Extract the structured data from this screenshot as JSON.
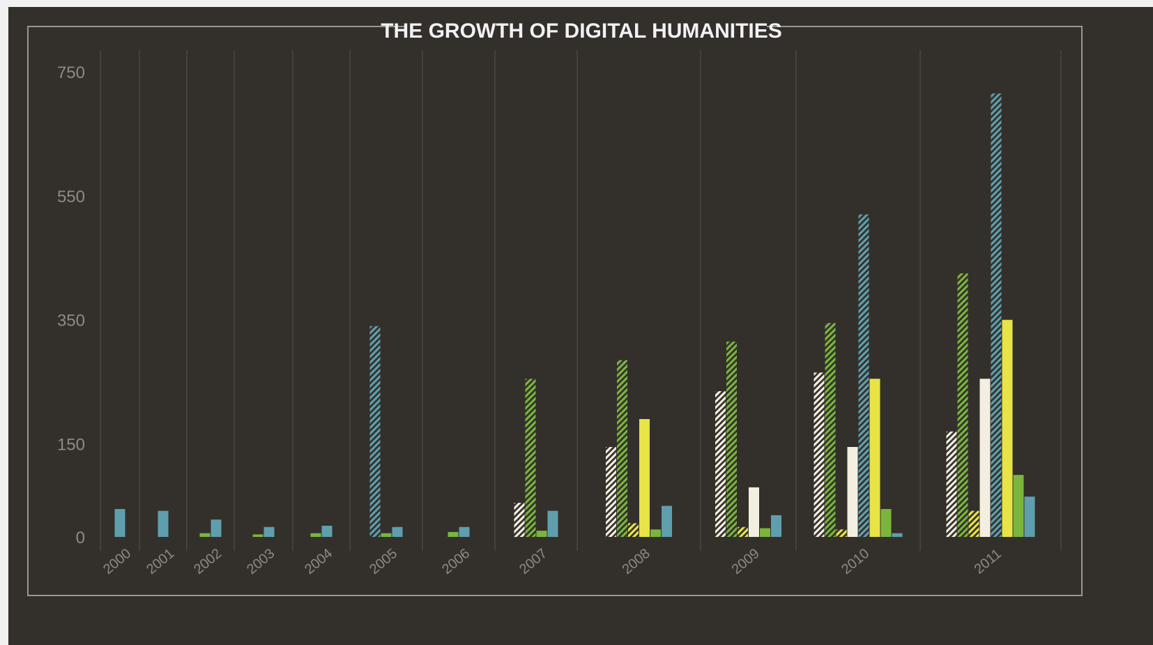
{
  "chart_data": {
    "type": "bar",
    "title": "THE GROWTH OF DIGITAL HUMANITIES",
    "xlabel": "",
    "ylabel": "",
    "ylim": [
      0,
      750
    ],
    "y_ticks": [
      "0",
      "150",
      "350",
      "550",
      "750"
    ],
    "categories": [
      "2000",
      "2001",
      "2002",
      "2003",
      "2004",
      "2005",
      "2006",
      "2007",
      "2008",
      "2009",
      "2010",
      "2011"
    ],
    "series": [
      {
        "color": "#f3efe0",
        "pattern": "hatched",
        "values": [
          0,
          0,
          0,
          0,
          0,
          0,
          0,
          55,
          145,
          235,
          265,
          170
        ]
      },
      {
        "color": "#7ab53d",
        "pattern": "hatched",
        "values": [
          0,
          0,
          0,
          0,
          0,
          0,
          0,
          255,
          285,
          315,
          345,
          425
        ]
      },
      {
        "color": "#e8e346",
        "pattern": "hatched",
        "values": [
          0,
          0,
          0,
          0,
          0,
          0,
          0,
          0,
          22,
          16,
          12,
          42
        ]
      },
      {
        "color": "#f3efe0",
        "pattern": "solid",
        "values": [
          0,
          0,
          0,
          0,
          0,
          0,
          0,
          0,
          0,
          80,
          145,
          255
        ]
      },
      {
        "color": "#5f9fad",
        "pattern": "hatched",
        "values": [
          0,
          0,
          0,
          0,
          0,
          340,
          0,
          0,
          0,
          0,
          520,
          715
        ]
      },
      {
        "color": "#e8e346",
        "pattern": "solid",
        "values": [
          0,
          0,
          0,
          0,
          0,
          0,
          0,
          0,
          190,
          0,
          255,
          350
        ]
      },
      {
        "color": "#7ab53d",
        "pattern": "solid",
        "values": [
          0,
          0,
          6,
          4,
          6,
          6,
          8,
          10,
          12,
          14,
          45,
          100
        ]
      },
      {
        "color": "#5f9fad",
        "pattern": "solid",
        "values": [
          45,
          42,
          28,
          16,
          18,
          16,
          16,
          42,
          50,
          35,
          6,
          65
        ]
      }
    ]
  }
}
